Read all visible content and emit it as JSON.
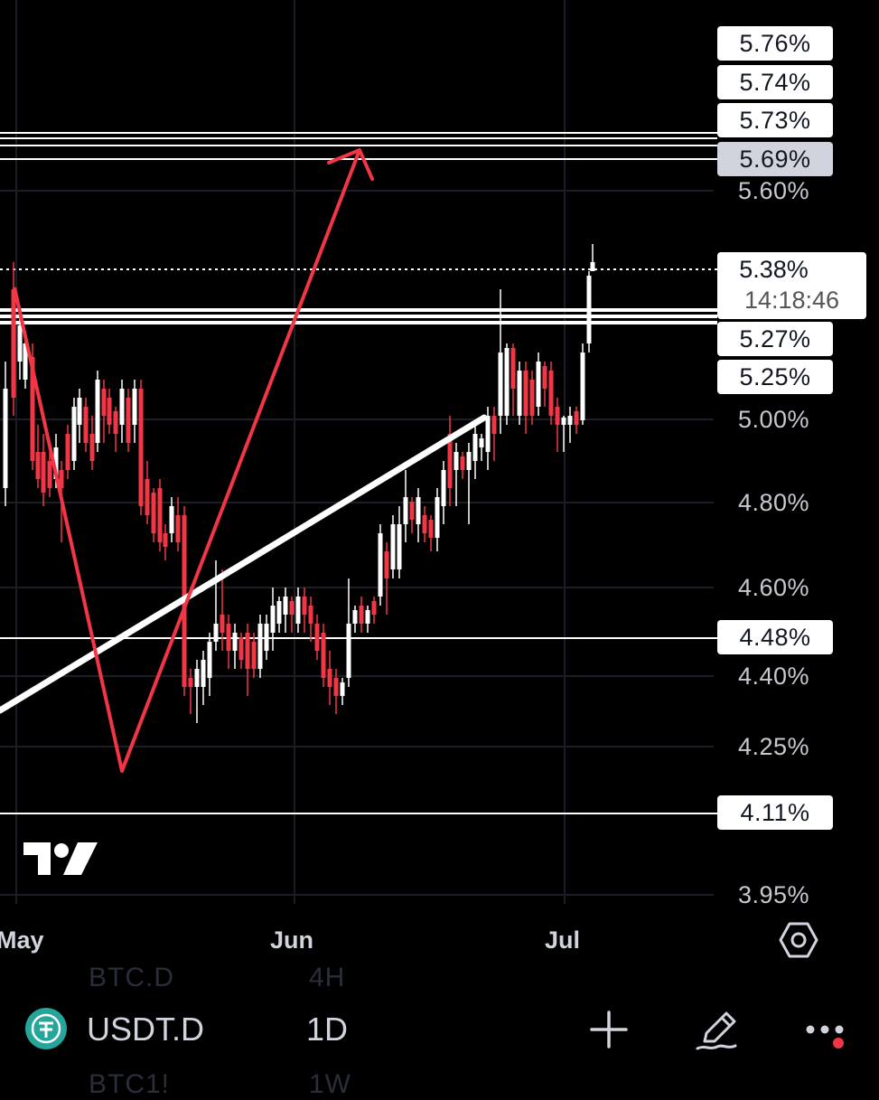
{
  "chart": {
    "price_tags": [
      {
        "label": "5.76%",
        "value": 5.76
      },
      {
        "label": "5.74%",
        "value": 5.74
      },
      {
        "label": "5.73%",
        "value": 5.73
      },
      {
        "label": "5.69%",
        "value": 5.69,
        "selected": true
      },
      {
        "label": "5.27%",
        "value": 5.27
      },
      {
        "label": "5.25%",
        "value": 5.25
      },
      {
        "label": "4.48%",
        "value": 4.48
      },
      {
        "label": "4.11%",
        "value": 4.11
      }
    ],
    "last_price": {
      "label": "5.38%",
      "countdown": "14:18:46",
      "value": 5.38
    },
    "axis_labels": [
      "5.60%",
      "5.00%",
      "4.80%",
      "4.60%",
      "4.40%",
      "4.25%",
      "3.95%"
    ],
    "time_labels": [
      "May",
      "Jun",
      "Jul"
    ],
    "colors": {
      "up": "#ffffff",
      "down": "#f23645",
      "drawing": "#f23645",
      "trendline": "#ffffff"
    }
  },
  "toolbar": {
    "ghost_above": {
      "symbol": "BTC.D",
      "interval": "4H"
    },
    "symbol": "USDT.D",
    "interval": "1D",
    "ghost_below": {
      "symbol": "BTC1!",
      "interval": "1W"
    },
    "icons": [
      "plus-icon",
      "pencil-icon",
      "more-icon"
    ],
    "notification_dot_color": "#f23645"
  }
}
